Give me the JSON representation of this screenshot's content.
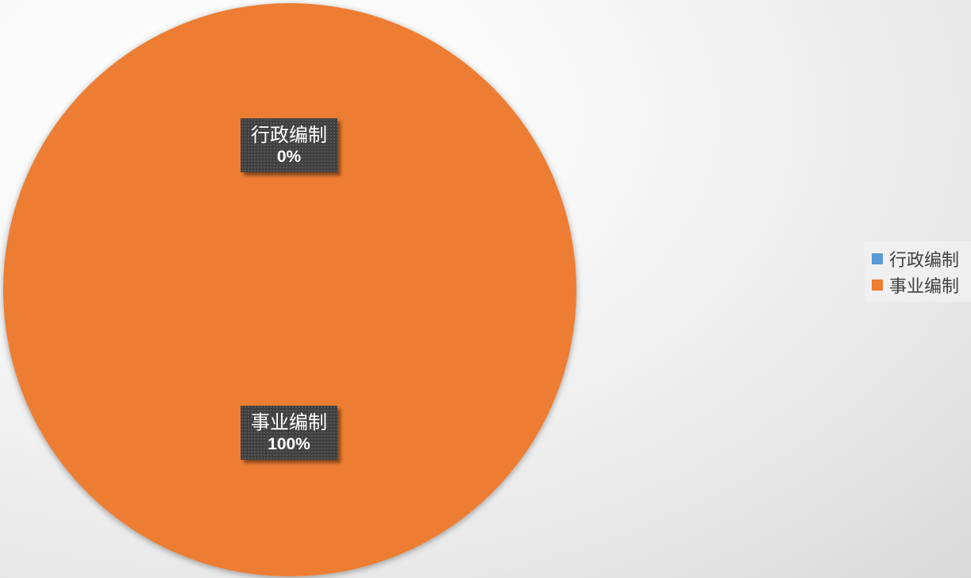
{
  "chart_data": {
    "type": "pie",
    "categories": [
      "行政编制",
      "事业编制"
    ],
    "values": [
      0,
      100
    ],
    "labels": [
      {
        "category": "行政编制",
        "percent": "0%"
      },
      {
        "category": "事业编制",
        "percent": "100%"
      }
    ],
    "colors": [
      "#5B9BD5",
      "#ED7D31"
    ],
    "legend": {
      "position": "right",
      "items": [
        "行政编制",
        "事业编制"
      ]
    }
  }
}
